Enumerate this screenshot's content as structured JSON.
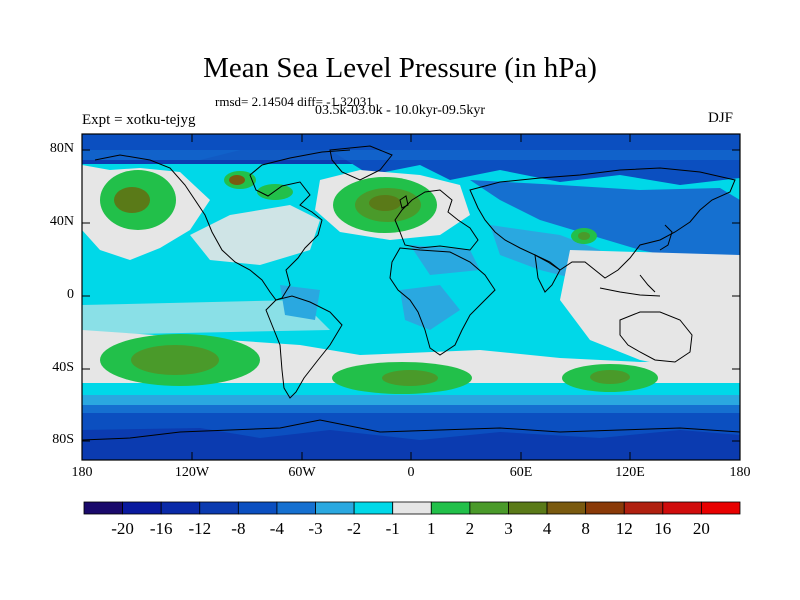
{
  "title": "Mean Sea Level Pressure (in hPa)",
  "stats": "rmsd= 2.14504 diff= -1.32031",
  "period": "03.5k-03.0k - 10.0kyr-09.5kyr",
  "experiment": "Expt = xotku-tejyg",
  "season": "DJF",
  "lat_labels": [
    "80N",
    "40N",
    "0",
    "40S",
    "80S"
  ],
  "lon_labels": [
    "180",
    "120W",
    "60W",
    "0",
    "60E",
    "120E",
    "180"
  ],
  "colorbar": {
    "labels": [
      "-20",
      "-16",
      "-12",
      "-8",
      "-4",
      "-3",
      "-2",
      "-1",
      "1",
      "2",
      "3",
      "4",
      "8",
      "12",
      "16",
      "20"
    ],
    "colors": [
      "#1a0a6b",
      "#0a1a9e",
      "#0a2aa8",
      "#0b3bb0",
      "#0b4fc0",
      "#1570d0",
      "#2aa8e0",
      "#00d8e8",
      "#e6e6e6",
      "#22c04a",
      "#4a9a2a",
      "#5a7a18",
      "#7a5a10",
      "#8a3a08",
      "#b02010",
      "#d00c0c",
      "#e80000"
    ]
  }
}
